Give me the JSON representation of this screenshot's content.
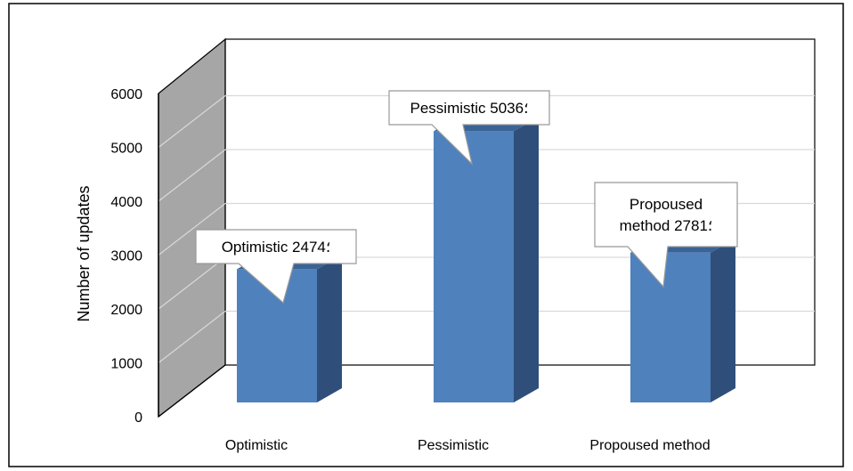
{
  "chart_data": {
    "type": "bar",
    "categories": [
      "Optimistic",
      "Pessimistic",
      "Propoused method"
    ],
    "values": [
      2474,
      5036,
      2781
    ],
    "title": "",
    "xlabel": "",
    "ylabel": "Number of updates",
    "ylim": [
      0,
      6000
    ],
    "yticks": [
      0,
      1000,
      2000,
      3000,
      4000,
      5000,
      6000
    ],
    "grid": true,
    "legend": "none",
    "data_labels": [
      [
        "Optimistic ؛2474"
      ],
      [
        "Pessimistic ؛5036"
      ],
      [
        "Propoused",
        "method ؛2781"
      ]
    ],
    "colors": {
      "bar_front": "#4f81bd",
      "bar_side": "#2f4f7a",
      "bar_top": "#3a6396",
      "wall": "#a6a6a6",
      "grid": "#d9d9d9"
    }
  }
}
